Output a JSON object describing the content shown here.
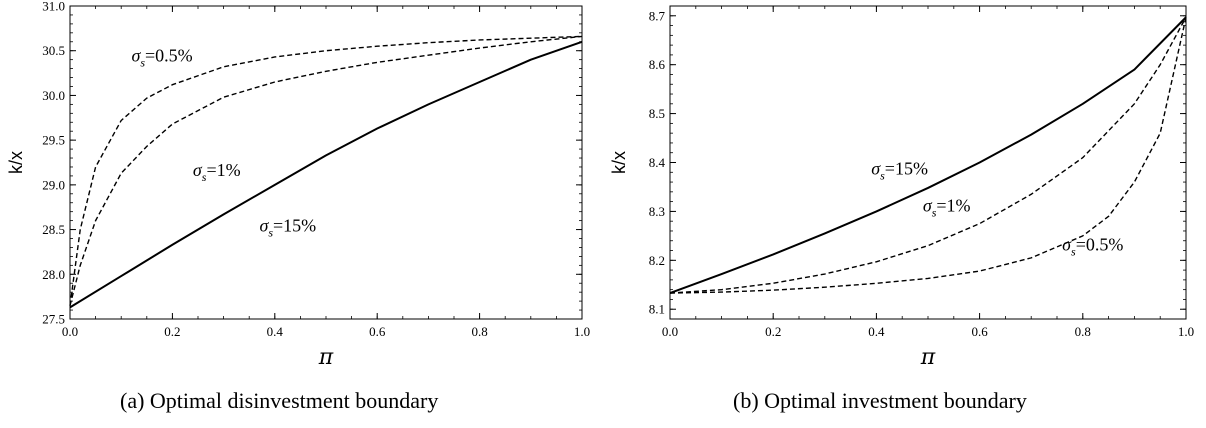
{
  "figure": {
    "captions": [
      "(a) Optimal disinvestment boundary",
      "(b) Optimal investment boundary"
    ]
  },
  "chart_data": [
    {
      "type": "line",
      "caption": "(a) Optimal disinvestment boundary",
      "xlabel": "π",
      "ylabel": "k/x",
      "xlim": [
        0.0,
        1.0
      ],
      "ylim": [
        27.5,
        31.0
      ],
      "xticks": [
        0.0,
        0.2,
        0.4,
        0.6,
        0.8,
        1.0
      ],
      "xtick_labels": [
        "0.0",
        "0.2",
        "0.4",
        "0.6",
        "0.8",
        "1.0"
      ],
      "yticks": [
        27.5,
        28.0,
        28.5,
        29.0,
        29.5,
        30.0,
        30.5,
        31.0
      ],
      "ytick_labels": [
        "27.5",
        "28.0",
        "28.5",
        "29.0",
        "29.5",
        "30.0",
        "30.5",
        "31.0"
      ],
      "grid": false,
      "series": [
        {
          "name": "σs=0.5%",
          "style": "dashed",
          "x": [
            0.0,
            0.02,
            0.05,
            0.1,
            0.15,
            0.2,
            0.3,
            0.4,
            0.5,
            0.6,
            0.7,
            0.8,
            0.9,
            1.0
          ],
          "y": [
            27.65,
            28.5,
            29.2,
            29.72,
            29.97,
            30.12,
            30.32,
            30.43,
            30.5,
            30.55,
            30.59,
            30.62,
            30.64,
            30.66
          ]
        },
        {
          "name": "σs=1%",
          "style": "dashed",
          "x": [
            0.0,
            0.02,
            0.05,
            0.1,
            0.15,
            0.2,
            0.3,
            0.4,
            0.5,
            0.6,
            0.7,
            0.8,
            0.9,
            1.0
          ],
          "y": [
            27.65,
            28.1,
            28.6,
            29.13,
            29.43,
            29.68,
            29.98,
            30.15,
            30.27,
            30.37,
            30.45,
            30.53,
            30.6,
            30.66
          ]
        },
        {
          "name": "σs=15%",
          "style": "solid",
          "x": [
            0.0,
            0.1,
            0.2,
            0.3,
            0.4,
            0.5,
            0.6,
            0.7,
            0.8,
            0.9,
            1.0
          ],
          "y": [
            27.63,
            27.98,
            28.33,
            28.67,
            29.0,
            29.33,
            29.63,
            29.9,
            30.15,
            30.4,
            30.6
          ]
        }
      ],
      "annotations": [
        {
          "series": "σs=0.5%",
          "symbol": "σ",
          "sub": "s",
          "rest": "=0.5%",
          "x": 0.12,
          "y": 30.38
        },
        {
          "series": "σs=1%",
          "symbol": "σ",
          "sub": "s",
          "rest": "=1%",
          "x": 0.24,
          "y": 29.1
        },
        {
          "series": "σs=15%",
          "symbol": "σ",
          "sub": "s",
          "rest": "=15%",
          "x": 0.37,
          "y": 28.48
        }
      ]
    },
    {
      "type": "line",
      "caption": "(b) Optimal investment boundary",
      "xlabel": "π",
      "ylabel": "k/x",
      "xlim": [
        0.0,
        1.0
      ],
      "ylim": [
        8.08,
        8.72
      ],
      "xticks": [
        0.0,
        0.2,
        0.4,
        0.6,
        0.8,
        1.0
      ],
      "xtick_labels": [
        "0.0",
        "0.2",
        "0.4",
        "0.6",
        "0.8",
        "1.0"
      ],
      "yticks": [
        8.1,
        8.2,
        8.3,
        8.4,
        8.5,
        8.6,
        8.7
      ],
      "ytick_labels": [
        "8.1",
        "8.2",
        "8.3",
        "8.4",
        "8.5",
        "8.6",
        "8.7"
      ],
      "grid": false,
      "series": [
        {
          "name": "σs=15%",
          "style": "solid",
          "x": [
            0.0,
            0.1,
            0.2,
            0.3,
            0.4,
            0.5,
            0.6,
            0.7,
            0.8,
            0.9,
            1.0
          ],
          "y": [
            8.133,
            8.172,
            8.212,
            8.255,
            8.3,
            8.348,
            8.4,
            8.457,
            8.52,
            8.59,
            8.697
          ]
        },
        {
          "name": "σs=1%",
          "style": "dashed",
          "x": [
            0.0,
            0.1,
            0.2,
            0.3,
            0.4,
            0.5,
            0.6,
            0.7,
            0.8,
            0.9,
            0.95,
            1.0
          ],
          "y": [
            8.133,
            8.14,
            8.153,
            8.172,
            8.197,
            8.23,
            8.275,
            8.335,
            8.41,
            8.52,
            8.6,
            8.697
          ]
        },
        {
          "name": "σs=0.5%",
          "style": "dashed",
          "x": [
            0.0,
            0.1,
            0.2,
            0.3,
            0.4,
            0.5,
            0.6,
            0.7,
            0.8,
            0.85,
            0.9,
            0.95,
            1.0
          ],
          "y": [
            8.133,
            8.135,
            8.139,
            8.145,
            8.153,
            8.163,
            8.178,
            8.205,
            8.25,
            8.29,
            8.36,
            8.46,
            8.697
          ]
        }
      ],
      "annotations": [
        {
          "series": "σs=15%",
          "symbol": "σ",
          "sub": "s",
          "rest": "=15%",
          "x": 0.39,
          "y": 8.375
        },
        {
          "series": "σs=1%",
          "symbol": "σ",
          "sub": "s",
          "rest": "=1%",
          "x": 0.49,
          "y": 8.3
        },
        {
          "series": "σs=0.5%",
          "symbol": "σ",
          "sub": "s",
          "rest": "=0.5%",
          "x": 0.76,
          "y": 8.22
        }
      ]
    }
  ]
}
